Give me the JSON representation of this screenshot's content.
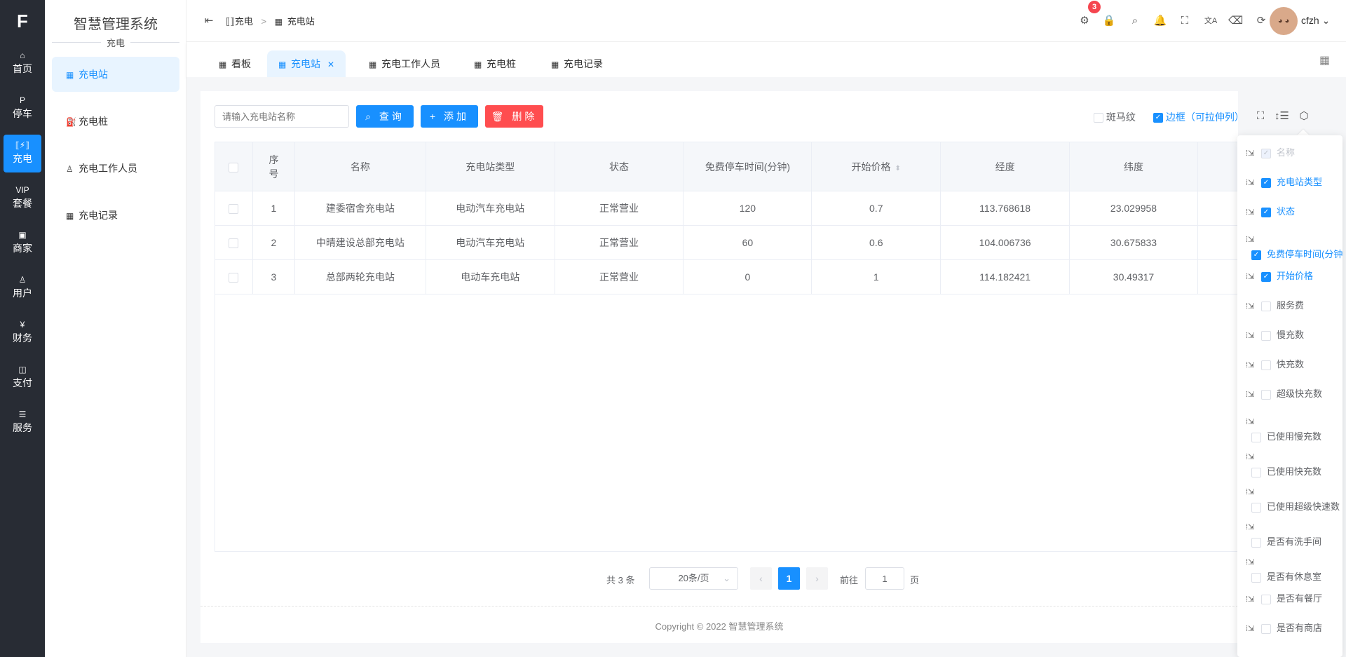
{
  "app": {
    "logo": "CF",
    "title": "智慧管理系统",
    "section": "充电"
  },
  "rail": [
    {
      "icon": "home-icon",
      "glyph": "⌂",
      "label": "首页"
    },
    {
      "icon": "parking-icon",
      "glyph": "P",
      "label": "停车"
    },
    {
      "icon": "charging-icon",
      "glyph": "⟦⚡⟧",
      "label": "充电",
      "active": true
    },
    {
      "icon": "vip-icon",
      "glyph": "VIP",
      "label": "套餐"
    },
    {
      "icon": "shop-icon",
      "glyph": "▣",
      "label": "商家"
    },
    {
      "icon": "user-icon",
      "glyph": "♙",
      "label": "用户"
    },
    {
      "icon": "finance-icon",
      "glyph": "¥",
      "label": "财务"
    },
    {
      "icon": "payment-icon",
      "glyph": "◫",
      "label": "支付"
    },
    {
      "icon": "service-icon",
      "glyph": "☰",
      "label": "服务"
    }
  ],
  "submenu": [
    {
      "label": "充电站",
      "icon": "grid-icon",
      "active": true
    },
    {
      "label": "充电桩",
      "icon": "charger-icon"
    },
    {
      "label": "充电工作人员",
      "icon": "badge-icon"
    },
    {
      "label": "充电记录",
      "icon": "grid-icon"
    }
  ],
  "breadcrumb": [
    "充电",
    "充电站"
  ],
  "header": {
    "badge_count": "3",
    "username": "cfzh",
    "icons": [
      "bug-icon",
      "lock-icon",
      "search-icon",
      "bell-icon",
      "fullscreen-icon",
      "translate-icon",
      "clear-icon",
      "refresh-icon"
    ]
  },
  "tabs": [
    {
      "label": "看板"
    },
    {
      "label": "充电站",
      "active": true,
      "closable": true
    },
    {
      "label": "充电工作人员"
    },
    {
      "label": "充电桩"
    },
    {
      "label": "充电记录"
    }
  ],
  "toolbar": {
    "search_placeholder": "请输入充电站名称",
    "query": "查询",
    "add": "添加",
    "delete": "删除",
    "zebra": "斑马纹",
    "zebra_checked": false,
    "border": "边框（可拉伸列）",
    "border_checked": true
  },
  "colors": {
    "primary": "#1890ff",
    "danger": "#ff4d4f",
    "rail_bg": "#282c34"
  },
  "table": {
    "headers": [
      "序号",
      "名称",
      "充电站类型",
      "状态",
      "免费停车时间(分钟)",
      "开始价格",
      "经度",
      "纬度",
      ""
    ],
    "rows": [
      [
        "1",
        "建委宿舍充电站",
        "电动汽车充电站",
        "正常营业",
        "120",
        "0.7",
        "113.768618",
        "23.029958"
      ],
      [
        "2",
        "中晴建设总部充电站",
        "电动汽车充电站",
        "正常营业",
        "60",
        "0.6",
        "104.006736",
        "30.675833"
      ],
      [
        "3",
        "总部两轮充电站",
        "电动车充电站",
        "正常营业",
        "0",
        "1",
        "114.182421",
        "30.49317"
      ]
    ]
  },
  "pagination": {
    "total": "共 3 条",
    "page_size": "20条/页",
    "current": "1",
    "goto_label": "前往",
    "goto_value": "1",
    "page_suffix": "页"
  },
  "footer": "Copyright © 2022 智慧管理系统",
  "columns_panel": [
    {
      "label": "名称",
      "checked": true,
      "disabled": true
    },
    {
      "label": "充电站类型",
      "checked": true
    },
    {
      "label": "状态",
      "checked": true
    },
    {
      "label": "免费停车时间(分钟)",
      "checked": true
    },
    {
      "label": "开始价格",
      "checked": true
    },
    {
      "label": "服务费",
      "checked": false
    },
    {
      "label": "慢充数",
      "checked": false
    },
    {
      "label": "快充数",
      "checked": false
    },
    {
      "label": "超级快充数",
      "checked": false
    },
    {
      "label": "已使用慢充数",
      "checked": false
    },
    {
      "label": "已使用快充数",
      "checked": false
    },
    {
      "label": "已使用超级快速数",
      "checked": false
    },
    {
      "label": "是否有洗手间",
      "checked": false
    },
    {
      "label": "是否有休息室",
      "checked": false
    },
    {
      "label": "是否有餐厅",
      "checked": false
    },
    {
      "label": "是否有商店",
      "checked": false
    }
  ]
}
